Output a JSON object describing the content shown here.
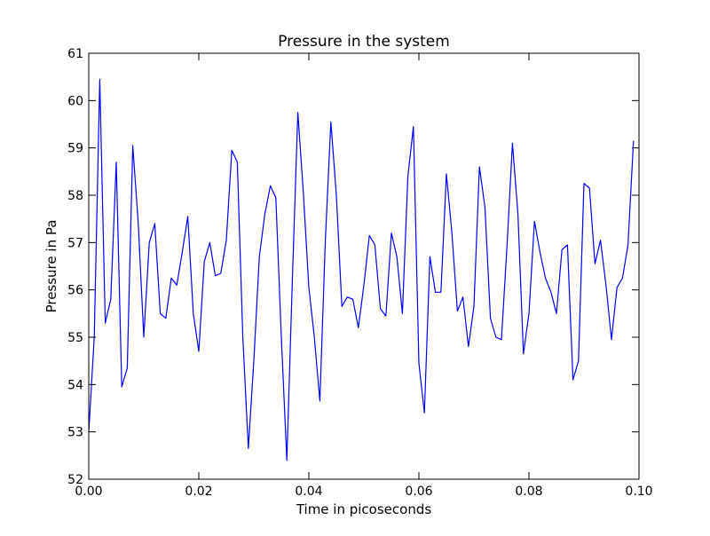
{
  "chart_data": {
    "type": "line",
    "title": "Pressure in the system",
    "xlabel": "Time in picoseconds",
    "ylabel": "Pressure in Pa",
    "xlim": [
      0.0,
      0.1
    ],
    "ylim": [
      52,
      61
    ],
    "grid": false,
    "x_ticks": [
      "0.00",
      "0.02",
      "0.04",
      "0.06",
      "0.08",
      "0.10"
    ],
    "y_ticks": [
      "52",
      "53",
      "54",
      "55",
      "56",
      "57",
      "58",
      "59",
      "60",
      "61"
    ],
    "line_color": "#0000ff",
    "series": [
      {
        "x": [
          0.0,
          0.001,
          0.002,
          0.003,
          0.004,
          0.005,
          0.006,
          0.007,
          0.008,
          0.009,
          0.01,
          0.011,
          0.012,
          0.013,
          0.014,
          0.015,
          0.016,
          0.017,
          0.018,
          0.019,
          0.02,
          0.021,
          0.022,
          0.023,
          0.024,
          0.025,
          0.026,
          0.027,
          0.028,
          0.029,
          0.03,
          0.031,
          0.032,
          0.033,
          0.034,
          0.035,
          0.036,
          0.037,
          0.038,
          0.039,
          0.04,
          0.041,
          0.042,
          0.043,
          0.044,
          0.045,
          0.046,
          0.047,
          0.048,
          0.049,
          0.05,
          0.051,
          0.052,
          0.053,
          0.054,
          0.055,
          0.056,
          0.057,
          0.058,
          0.059,
          0.06,
          0.061,
          0.062,
          0.063,
          0.064,
          0.065,
          0.066,
          0.067,
          0.068,
          0.069,
          0.07,
          0.071,
          0.072,
          0.073,
          0.074,
          0.075,
          0.076,
          0.077,
          0.078,
          0.079,
          0.08,
          0.081,
          0.082,
          0.083,
          0.084,
          0.085,
          0.086,
          0.087,
          0.088,
          0.089,
          0.09,
          0.091,
          0.092,
          0.093,
          0.094,
          0.095,
          0.096,
          0.097,
          0.098,
          0.099
        ],
        "y": [
          53.0,
          55.0,
          60.45,
          55.3,
          55.8,
          58.7,
          53.95,
          54.35,
          59.05,
          57.4,
          55.0,
          57.0,
          57.4,
          55.5,
          55.4,
          56.25,
          56.1,
          56.8,
          57.55,
          55.5,
          54.7,
          56.6,
          57.0,
          56.3,
          56.35,
          57.05,
          58.95,
          58.7,
          55.0,
          52.65,
          54.5,
          56.7,
          57.6,
          58.2,
          57.95,
          55.0,
          52.4,
          56.2,
          59.75,
          58.05,
          56.05,
          55.0,
          53.65,
          57.05,
          59.55,
          58.0,
          55.65,
          55.85,
          55.8,
          55.2,
          56.1,
          57.15,
          56.95,
          55.6,
          55.45,
          57.2,
          56.7,
          55.5,
          58.4,
          59.45,
          54.45,
          53.4,
          56.7,
          55.95,
          55.95,
          58.45,
          57.2,
          55.55,
          55.85,
          54.8,
          55.65,
          58.6,
          57.75,
          55.4,
          55.0,
          54.95,
          56.9,
          59.1,
          57.6,
          54.65,
          55.5,
          57.45,
          56.8,
          56.25,
          55.95,
          55.5,
          56.85,
          56.95,
          54.1,
          54.5,
          58.25,
          58.15,
          56.55,
          57.05,
          56.1,
          54.95,
          56.05,
          56.25,
          56.95,
          59.15
        ]
      }
    ]
  }
}
